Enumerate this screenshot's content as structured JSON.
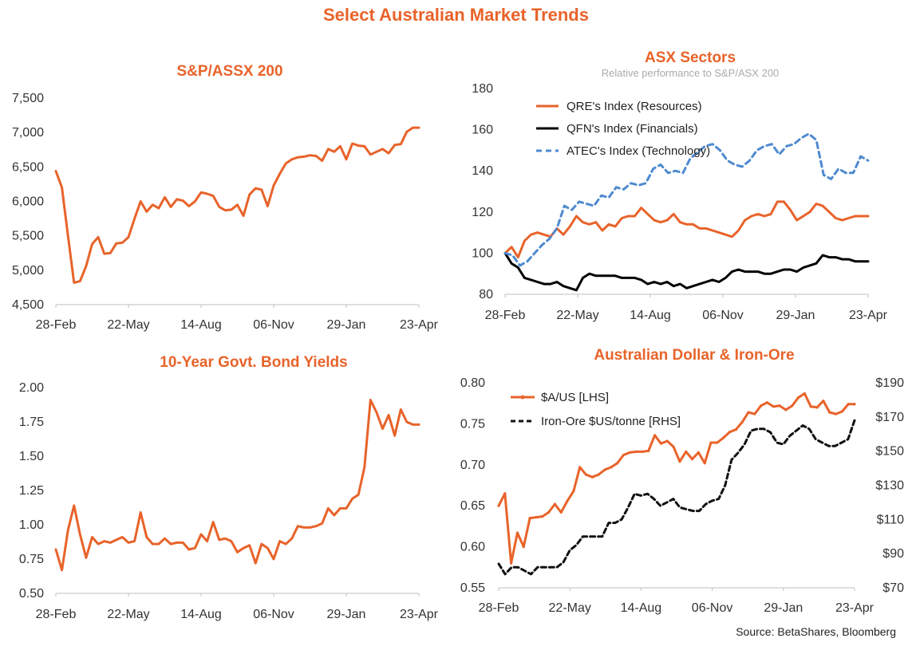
{
  "page": {
    "title": "Select Australian Market Trends",
    "source": "Source: BetaShares, Bloomberg",
    "accent_color": "#e8632a"
  },
  "chart_data": [
    {
      "id": "sp-asx",
      "type": "line",
      "title": "S&P/ASSX 200",
      "x_ticks": [
        "28-Feb",
        "22-May",
        "14-Aug",
        "06-Nov",
        "29-Jan",
        "23-Apr"
      ],
      "ylim": [
        4500,
        7500
      ],
      "y_ticks": [
        "4,500",
        "5,000",
        "5,500",
        "6,000",
        "6,500",
        "7,000",
        "7,500"
      ],
      "y_tick_values": [
        4500,
        5000,
        5500,
        6000,
        6500,
        7000,
        7500
      ],
      "grid": false,
      "series": [
        {
          "color": "#e8632a",
          "values": [
            6440,
            6200,
            5500,
            4820,
            4840,
            5060,
            5380,
            5480,
            5240,
            5250,
            5390,
            5400,
            5480,
            5750,
            6000,
            5850,
            5950,
            5900,
            6060,
            5920,
            6030,
            6010,
            5930,
            6000,
            6130,
            6110,
            6080,
            5920,
            5870,
            5880,
            5950,
            5790,
            6100,
            6190,
            6170,
            5930,
            6230,
            6400,
            6550,
            6610,
            6640,
            6650,
            6670,
            6660,
            6590,
            6760,
            6720,
            6800,
            6610,
            6840,
            6810,
            6800,
            6680,
            6720,
            6760,
            6700,
            6820,
            6830,
            7010,
            7070,
            7070
          ]
        }
      ]
    },
    {
      "id": "asx-sectors",
      "type": "line",
      "title": "ASX Sectors",
      "subtitle": "Relative performance to S&P/ASX 200",
      "x_ticks": [
        "28-Feb",
        "22-May",
        "14-Aug",
        "06-Nov",
        "29-Jan",
        "23-Apr"
      ],
      "ylim": [
        80,
        180
      ],
      "y_ticks": [
        "80",
        "100",
        "120",
        "140",
        "160",
        "180"
      ],
      "y_tick_values": [
        80,
        100,
        120,
        140,
        160,
        180
      ],
      "grid": false,
      "legend": "top-left",
      "series": [
        {
          "name": "QRE's Index (Resources)",
          "color": "#e8632a",
          "dash": "none",
          "values": [
            100,
            103,
            98,
            106,
            109,
            110,
            109,
            108,
            112,
            109,
            113,
            118,
            115,
            114,
            115,
            111,
            114,
            113,
            117,
            118,
            118,
            122,
            119,
            116,
            115,
            116,
            119,
            115,
            114,
            114,
            112,
            112,
            111,
            110,
            109,
            108,
            111,
            116,
            118,
            119,
            118,
            119,
            125,
            125,
            121,
            116,
            118,
            120,
            124,
            123,
            120,
            117,
            116,
            117,
            118,
            118,
            118
          ]
        },
        {
          "name": "QFN's Index (Financials)",
          "color": "#000000",
          "dash": "none",
          "values": [
            100,
            95,
            93,
            88,
            87,
            86,
            85,
            85,
            86,
            84,
            83,
            82,
            88,
            90,
            89,
            89,
            89,
            89,
            88,
            88,
            88,
            87,
            85,
            86,
            85,
            86,
            84,
            85,
            83,
            84,
            85,
            86,
            87,
            86,
            88,
            91,
            92,
            91,
            91,
            91,
            90,
            90,
            91,
            92,
            92,
            91,
            93,
            94,
            95,
            99,
            98,
            98,
            97,
            97,
            96,
            96,
            96
          ]
        },
        {
          "name": "ATEC's Index (Technology)",
          "color": "#4f8ad0",
          "dash": "7,5",
          "values": [
            100,
            99,
            94,
            96,
            100,
            104,
            107,
            112,
            123,
            121,
            125,
            124,
            123,
            128,
            127,
            132,
            131,
            134,
            133,
            134,
            141,
            143,
            139,
            140,
            139,
            146,
            149,
            152,
            153,
            150,
            145,
            143,
            142,
            145,
            150,
            152,
            153,
            148,
            152,
            153,
            156,
            158,
            155,
            138,
            136,
            141,
            139,
            139,
            147,
            145
          ]
        }
      ]
    },
    {
      "id": "bond-yields",
      "type": "line",
      "title": "10-Year Govt. Bond Yields",
      "x_ticks": [
        "28-Feb",
        "22-May",
        "14-Aug",
        "06-Nov",
        "29-Jan",
        "23-Apr"
      ],
      "ylim": [
        0.5,
        2.0
      ],
      "y_ticks": [
        "0.50",
        "0.75",
        "1.00",
        "1.25",
        "1.50",
        "1.75",
        "2.00"
      ],
      "y_tick_values": [
        0.5,
        0.75,
        1.0,
        1.25,
        1.5,
        1.75,
        2.0
      ],
      "grid": false,
      "series": [
        {
          "color": "#e8632a",
          "values": [
            0.82,
            0.67,
            0.96,
            1.14,
            0.93,
            0.76,
            0.91,
            0.86,
            0.88,
            0.87,
            0.89,
            0.91,
            0.87,
            0.88,
            1.09,
            0.91,
            0.86,
            0.86,
            0.9,
            0.86,
            0.87,
            0.87,
            0.82,
            0.83,
            0.93,
            0.88,
            1.02,
            0.89,
            0.9,
            0.88,
            0.8,
            0.83,
            0.85,
            0.72,
            0.86,
            0.83,
            0.75,
            0.88,
            0.86,
            0.9,
            0.99,
            0.98,
            0.98,
            0.99,
            1.01,
            1.12,
            1.07,
            1.12,
            1.12,
            1.19,
            1.22,
            1.42,
            1.91,
            1.82,
            1.7,
            1.8,
            1.65,
            1.84,
            1.75,
            1.73,
            1.73
          ]
        }
      ]
    },
    {
      "id": "aud-iron-ore",
      "type": "line",
      "title": "Australian Dollar & Iron-Ore",
      "x_ticks": [
        "28-Feb",
        "22-May",
        "14-Aug",
        "06-Nov",
        "29-Jan",
        "23-Apr"
      ],
      "ylim": [
        0.55,
        0.8
      ],
      "y_ticks": [
        "0.55",
        "0.60",
        "0.65",
        "0.70",
        "0.75",
        "0.80"
      ],
      "y_tick_values": [
        0.55,
        0.6,
        0.65,
        0.7,
        0.75,
        0.8
      ],
      "y2lim": [
        70,
        190
      ],
      "y2_ticks": [
        "$70",
        "$90",
        "$110",
        "$130",
        "$150",
        "$170",
        "$190"
      ],
      "y2_tick_values": [
        70,
        90,
        110,
        130,
        150,
        170,
        190
      ],
      "grid": false,
      "legend": "top-left",
      "series": [
        {
          "name": "$A/US [LHS]",
          "color": "#e8632a",
          "dash": "none",
          "marker": true,
          "axis": "left",
          "values": [
            0.65,
            0.665,
            0.58,
            0.617,
            0.6,
            0.635,
            0.636,
            0.637,
            0.642,
            0.652,
            0.642,
            0.656,
            0.668,
            0.697,
            0.688,
            0.685,
            0.688,
            0.694,
            0.697,
            0.702,
            0.712,
            0.715,
            0.716,
            0.716,
            0.717,
            0.736,
            0.726,
            0.729,
            0.722,
            0.704,
            0.716,
            0.707,
            0.715,
            0.702,
            0.727,
            0.727,
            0.733,
            0.74,
            0.743,
            0.752,
            0.764,
            0.762,
            0.772,
            0.776,
            0.771,
            0.772,
            0.767,
            0.772,
            0.782,
            0.787,
            0.771,
            0.77,
            0.778,
            0.764,
            0.762,
            0.765,
            0.774,
            0.774
          ]
        },
        {
          "name": "Iron-Ore $US/tonne [RHS]",
          "color": "#111111",
          "dash": "6,4",
          "axis": "right",
          "values": [
            84,
            78,
            82,
            82,
            80,
            78,
            82,
            82,
            82,
            82,
            85,
            92,
            95,
            100,
            100,
            100,
            100,
            108,
            108,
            110,
            117,
            125,
            124,
            125,
            122,
            118,
            120,
            122,
            117,
            116,
            115,
            115,
            119,
            121,
            122,
            130,
            145,
            149,
            154,
            162,
            163,
            163,
            161,
            155,
            154,
            159,
            162,
            165,
            163,
            157,
            155,
            153,
            153,
            155,
            157,
            168
          ]
        }
      ]
    }
  ]
}
